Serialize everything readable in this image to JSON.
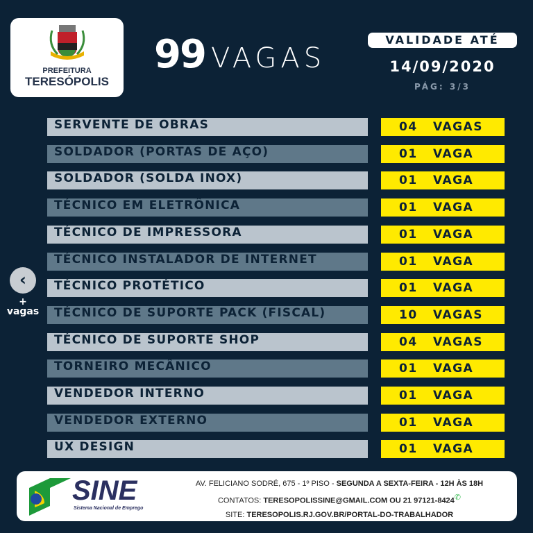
{
  "logo": {
    "line1": "PREFEITURA",
    "line2": "TERESÓPOLIS"
  },
  "headline": {
    "count": "99",
    "label": "VAGAS"
  },
  "validity": {
    "label": "VALIDADE ATÉ",
    "date": "14/09/2020",
    "page": "PÁG: 3/3"
  },
  "nav": {
    "prev_icon": "chevron-left-icon",
    "prev_glyph": "‹",
    "more_line1": "+",
    "more_line2": "vagas"
  },
  "jobs": [
    {
      "title": "SERVENTE DE OBRAS",
      "qty": "04",
      "unit": "VAGAS"
    },
    {
      "title": "SOLDADOR (PORTAS DE AÇO)",
      "qty": "01",
      "unit": "VAGA"
    },
    {
      "title": "SOLDADOR (SOLDA INOX)",
      "qty": "01",
      "unit": "VAGA"
    },
    {
      "title": "TÉCNICO EM ELETRÔNICA",
      "qty": "01",
      "unit": "VAGA"
    },
    {
      "title": "TÉCNICO DE IMPRESSORA",
      "qty": "01",
      "unit": "VAGA"
    },
    {
      "title": "TÉCNICO INSTALADOR DE INTERNET",
      "qty": "01",
      "unit": "VAGA"
    },
    {
      "title": "TÉCNICO PROTÉTICO",
      "qty": "01",
      "unit": "VAGA"
    },
    {
      "title": "TÉCNICO DE SUPORTE PACK (FISCAL)",
      "qty": "10",
      "unit": "VAGAS"
    },
    {
      "title": "TÉCNICO DE SUPORTE SHOP",
      "qty": "04",
      "unit": "VAGAS"
    },
    {
      "title": "TORNEIRO MECÂNICO",
      "qty": "01",
      "unit": "VAGA"
    },
    {
      "title": "VENDEDOR INTERNO",
      "qty": "01",
      "unit": "VAGA"
    },
    {
      "title": "VENDEDOR EXTERNO",
      "qty": "01",
      "unit": "VAGA"
    },
    {
      "title": "UX DESIGN",
      "qty": "01",
      "unit": "VAGA"
    }
  ],
  "footer": {
    "brand": "SINE",
    "brand_sub": "Sistema Nacional de Emprego",
    "address": "AV. FELICIANO SODRÉ, 675 - 1º PISO - ",
    "hours": "SEGUNDA A SEXTA-FEIRA - 12H ÀS 18H",
    "contacts_label": "CONTATOS: ",
    "contacts": "TERESOPOLISSINE@GMAIL.COM OU 21 97121-8424",
    "site_label": "SITE: ",
    "site": "TERESOPOLIS.RJ.GOV.BR/PORTAL-DO-TRABALHADOR"
  },
  "colors": {
    "background": "#0c2236",
    "row_light": "#bac4cd",
    "row_dark": "#5f7889",
    "highlight": "#ffea00"
  }
}
